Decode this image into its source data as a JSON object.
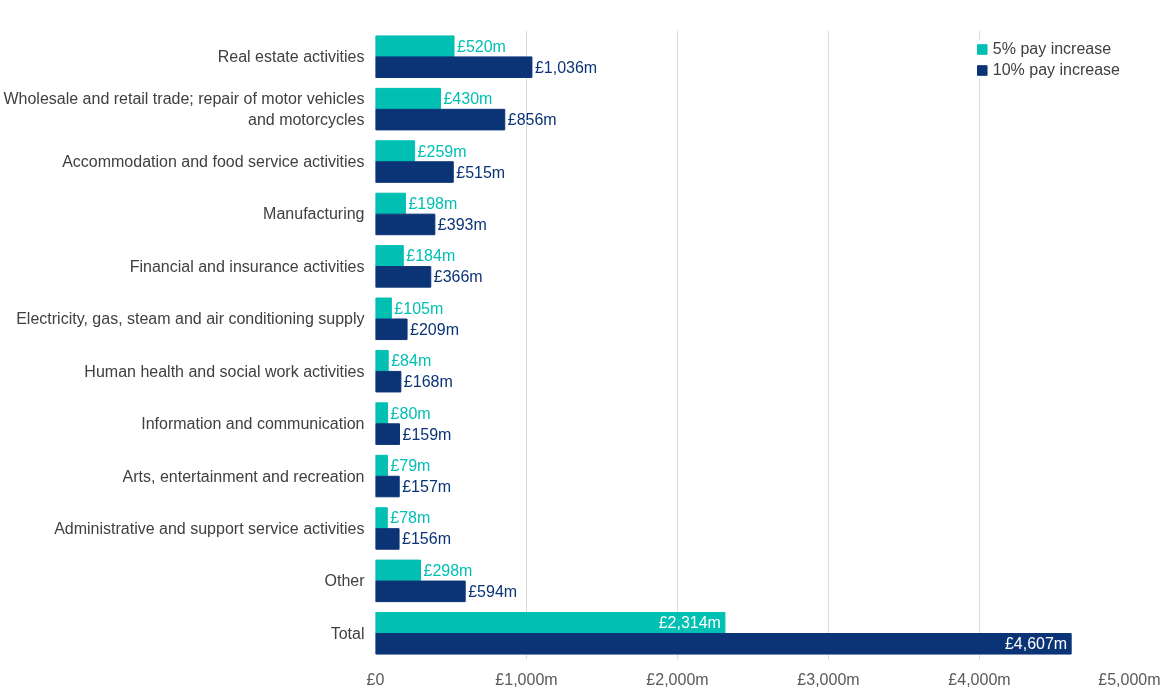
{
  "chart_data": {
    "type": "bar",
    "orientation": "horizontal",
    "categories": [
      "Real estate activities",
      "Wholesale and retail trade; repair of motor vehicles and motorcycles",
      "Accommodation and food service activities",
      "Manufacturing",
      "Financial and insurance activities",
      "Electricity, gas, steam and air conditioning supply",
      "Human health and social work activities",
      "Information and communication",
      "Arts, entertainment and recreation",
      "Administrative and support service activities",
      "Other",
      "Total"
    ],
    "series": [
      {
        "name": "5% pay increase",
        "color": "#00bfb3",
        "values": [
          520,
          430,
          259,
          198,
          184,
          105,
          84,
          80,
          79,
          78,
          298,
          2314
        ],
        "value_labels": [
          "£520m",
          "£430m",
          "£259m",
          "£198m",
          "£184m",
          "£105m",
          "£84m",
          "£80m",
          "£79m",
          "£78m",
          "£298m",
          "£2,314m"
        ]
      },
      {
        "name": "10% pay increase",
        "color": "#0b3476",
        "values": [
          1036,
          856,
          515,
          393,
          366,
          209,
          168,
          159,
          157,
          156,
          594,
          4607
        ],
        "value_labels": [
          "£1,036m",
          "£856m",
          "£515m",
          "£393m",
          "£366m",
          "£209m",
          "£168m",
          "£159m",
          "£157m",
          "£156m",
          "£594m",
          "£4,607m"
        ]
      }
    ],
    "xlim": [
      0,
      5000
    ],
    "xticks": [
      {
        "value": 0,
        "label": "£0"
      },
      {
        "value": 1000,
        "label": "£1,000m"
      },
      {
        "value": 2000,
        "label": "£2,000m"
      },
      {
        "value": 3000,
        "label": "£3,000m"
      },
      {
        "value": 4000,
        "label": "£4,000m"
      },
      {
        "value": 5000,
        "label": "£5,000m"
      }
    ],
    "grid": "x",
    "legend": "top right"
  }
}
